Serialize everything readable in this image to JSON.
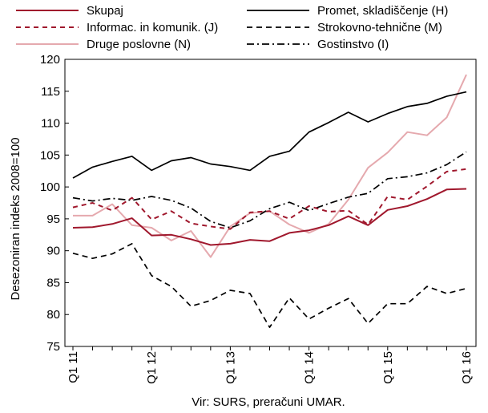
{
  "chart_data": {
    "type": "line",
    "ylabel": "Desezoniran indeks 2008=100",
    "source": "Vir:  SURS, preračuni UMAR.",
    "ylim": [
      75,
      120
    ],
    "yticks": [
      75,
      80,
      85,
      90,
      95,
      100,
      105,
      110,
      115,
      120
    ],
    "grid": false,
    "legend_position": "top",
    "xticks": [
      {
        "index": 0,
        "label": "Q1 11"
      },
      {
        "index": 4,
        "label": "Q1 12"
      },
      {
        "index": 8,
        "label": "Q1 13"
      },
      {
        "index": 12,
        "label": "Q1 14"
      },
      {
        "index": 16,
        "label": "Q1 15"
      },
      {
        "index": 20,
        "label": "Q1 16"
      }
    ],
    "series": [
      {
        "name": "Skupaj",
        "color": "#a0182d",
        "dash": "solid",
        "width": 2,
        "values": [
          93.6,
          93.7,
          94.2,
          95.1,
          92.4,
          92.5,
          91.8,
          90.9,
          91.1,
          91.7,
          91.5,
          92.8,
          93.2,
          94.0,
          95.4,
          94.0,
          96.4,
          97.0,
          98.1,
          99.6,
          99.7
        ]
      },
      {
        "name": "Promet, skladiščenje (H)",
        "color": "#000000",
        "dash": "solid",
        "width": 1.7,
        "values": [
          101.4,
          103.1,
          104.0,
          104.8,
          102.6,
          104.1,
          104.6,
          103.6,
          103.2,
          102.6,
          104.8,
          105.6,
          108.6,
          110.1,
          111.7,
          110.2,
          111.5,
          112.6,
          113.1,
          114.2,
          114.9
        ]
      },
      {
        "name": "Informac. in komunik. (J)",
        "color": "#a0182d",
        "dash": "6,5",
        "width": 2,
        "values": [
          96.8,
          97.5,
          96.3,
          98.3,
          94.9,
          96.2,
          94.3,
          93.8,
          93.4,
          96.0,
          96.2,
          95.0,
          97.0,
          96.1,
          96.3,
          94.1,
          98.5,
          98.0,
          100.1,
          102.4,
          102.8
        ]
      },
      {
        "name": "Strokovno-tehnične (M)",
        "color": "#000000",
        "dash": "7,5",
        "width": 1.7,
        "values": [
          89.6,
          88.8,
          89.5,
          91.1,
          86.1,
          84.4,
          81.3,
          82.2,
          83.8,
          83.3,
          78.0,
          82.6,
          79.3,
          81.0,
          82.5,
          78.6,
          81.7,
          81.7,
          84.4,
          83.3,
          84.1
        ]
      },
      {
        "name": "Druge poslovne (N)",
        "color": "#e5a9ae",
        "dash": "solid",
        "width": 2,
        "values": [
          95.5,
          95.5,
          97.3,
          94.0,
          93.6,
          91.6,
          93.1,
          89.0,
          93.8,
          95.9,
          96.2,
          94.1,
          92.8,
          94.2,
          98.0,
          103.0,
          105.4,
          108.6,
          108.1,
          110.9,
          117.6
        ]
      },
      {
        "name": "Gostinstvo (I)",
        "color": "#000000",
        "dash": "9,4,2,4",
        "width": 1.7,
        "values": [
          98.3,
          97.8,
          98.2,
          97.9,
          98.5,
          97.9,
          96.7,
          94.6,
          93.6,
          94.7,
          96.6,
          97.6,
          96.3,
          97.4,
          98.4,
          99.0,
          101.3,
          101.6,
          102.2,
          103.5,
          105.5
        ]
      }
    ]
  }
}
